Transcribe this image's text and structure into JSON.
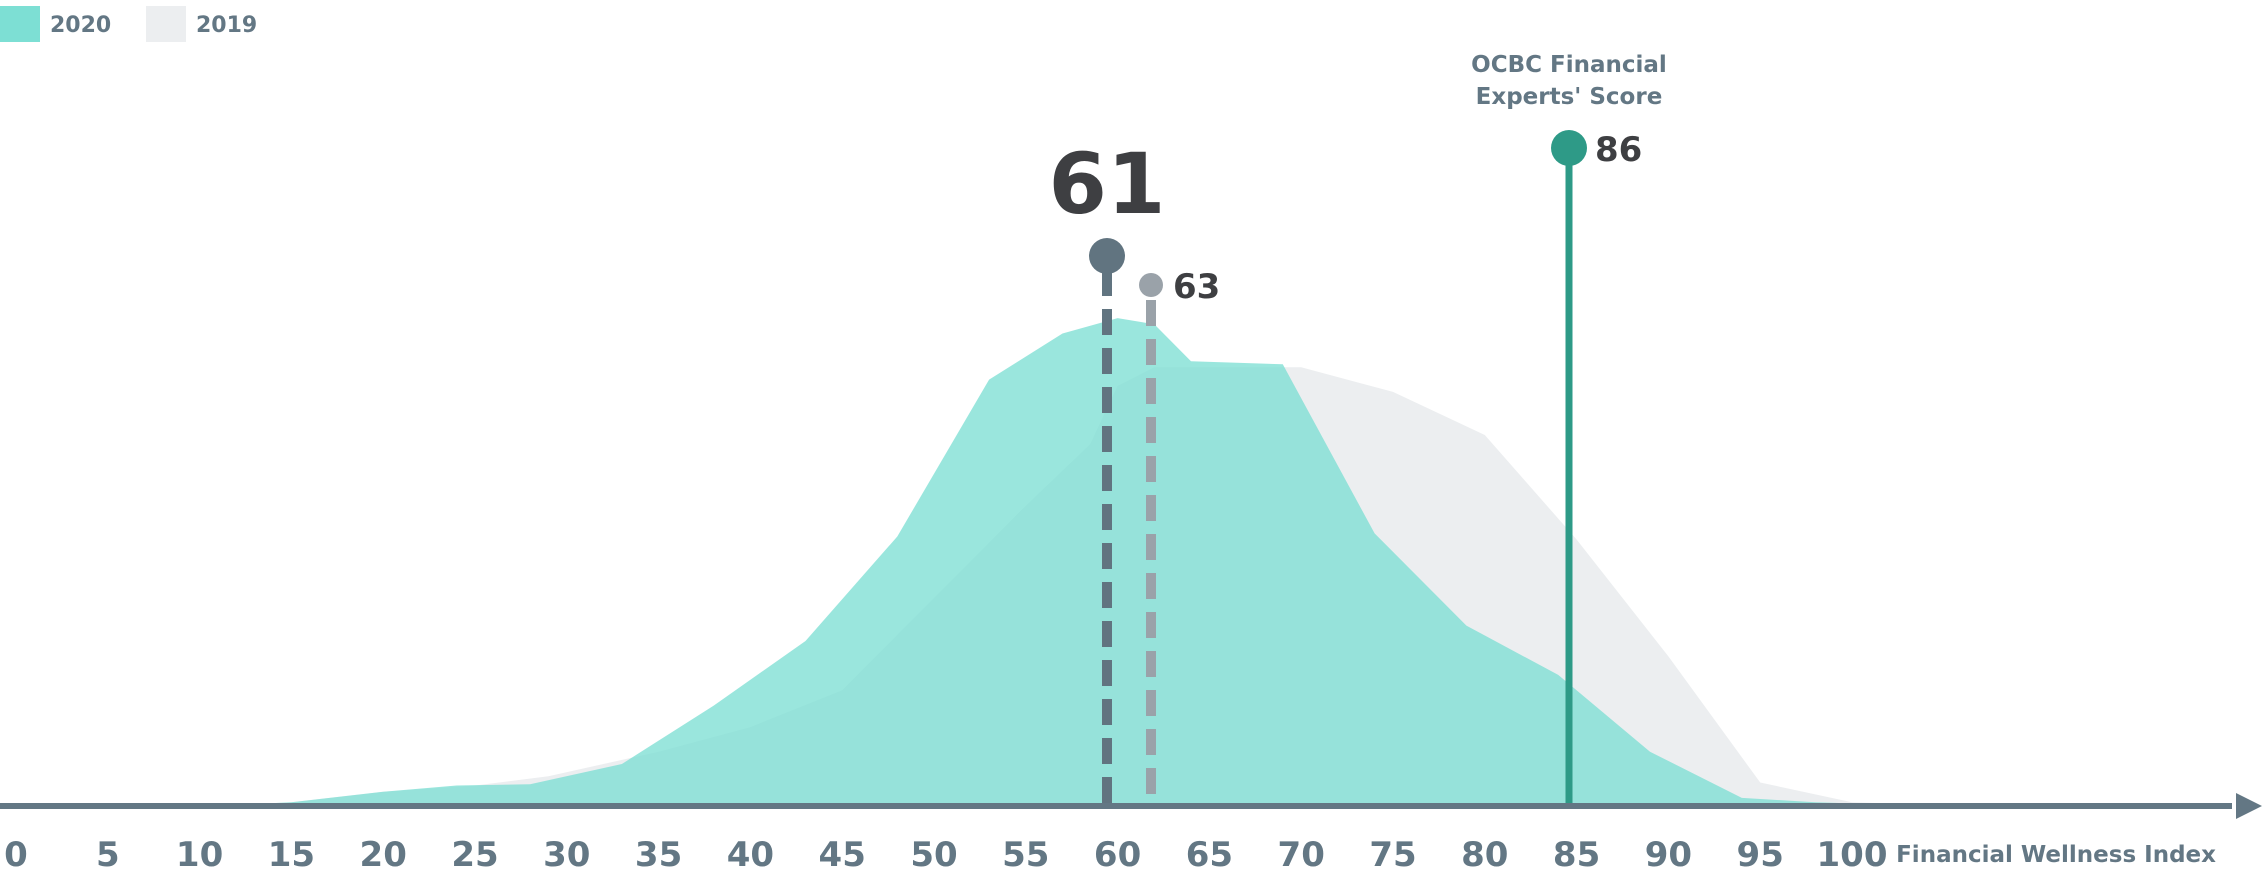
{
  "chart_data": {
    "type": "area",
    "title": "",
    "xlabel": "Financial Wellness Index",
    "ylabel": "",
    "xlim": [
      0,
      100
    ],
    "grid": false,
    "legend_placement": "top-left",
    "x_ticks": [
      0,
      5,
      10,
      15,
      20,
      25,
      30,
      35,
      40,
      45,
      50,
      55,
      60,
      65,
      70,
      75,
      80,
      85,
      90,
      95,
      100
    ],
    "series": [
      {
        "name": "2019",
        "color": "#eceef0",
        "points": [
          [
            13,
            0
          ],
          [
            15,
            0.3
          ],
          [
            20,
            2.0
          ],
          [
            25,
            3.0
          ],
          [
            29,
            4.5
          ],
          [
            35,
            8.5
          ],
          [
            40,
            12.5
          ],
          [
            45,
            18.5
          ],
          [
            50,
            33.5
          ],
          [
            55,
            48.5
          ],
          [
            58.5,
            58.5
          ],
          [
            60,
            68
          ],
          [
            62,
            71
          ],
          [
            65,
            71
          ],
          [
            70,
            71
          ],
          [
            75,
            67
          ],
          [
            80,
            60
          ],
          [
            85,
            43
          ],
          [
            90,
            24
          ],
          [
            95,
            3.5
          ],
          [
            100,
            0.3
          ],
          [
            103,
            0
          ]
        ]
      },
      {
        "name": "2020",
        "color": "#7ddfd4",
        "points": [
          [
            13,
            0
          ],
          [
            15,
            0.3
          ],
          [
            20,
            2.0
          ],
          [
            24,
            3.0
          ],
          [
            28,
            3.2
          ],
          [
            33,
            6.5
          ],
          [
            38,
            16.0
          ],
          [
            43,
            26.5
          ],
          [
            48,
            43.5
          ],
          [
            53,
            69.0
          ],
          [
            57,
            76.5
          ],
          [
            60,
            79.0
          ],
          [
            62,
            78.0
          ],
          [
            64,
            72.0
          ],
          [
            69,
            71.5
          ],
          [
            74,
            44.0
          ],
          [
            79,
            29.0
          ],
          [
            84,
            21.0
          ],
          [
            89,
            8.5
          ],
          [
            94,
            1.0
          ],
          [
            98,
            0.3
          ],
          [
            101,
            0
          ]
        ]
      }
    ],
    "markers": [
      {
        "name": "2020 score",
        "value": 61,
        "label": "61",
        "color": "#617480"
      },
      {
        "name": "2019 score",
        "value": 63,
        "label": "63",
        "color": "#9aa2a9"
      },
      {
        "name": "OCBC Financial Experts' Score",
        "value": 86,
        "label": "86",
        "color": "#2e9a87"
      }
    ],
    "expert_label_lines": [
      "OCBC Financial",
      "Experts' Score"
    ]
  },
  "legend": [
    {
      "label": "2020",
      "color": "#7ddfd4"
    },
    {
      "label": "2019",
      "color": "#eceef0"
    }
  ],
  "axis_color": "#637784"
}
